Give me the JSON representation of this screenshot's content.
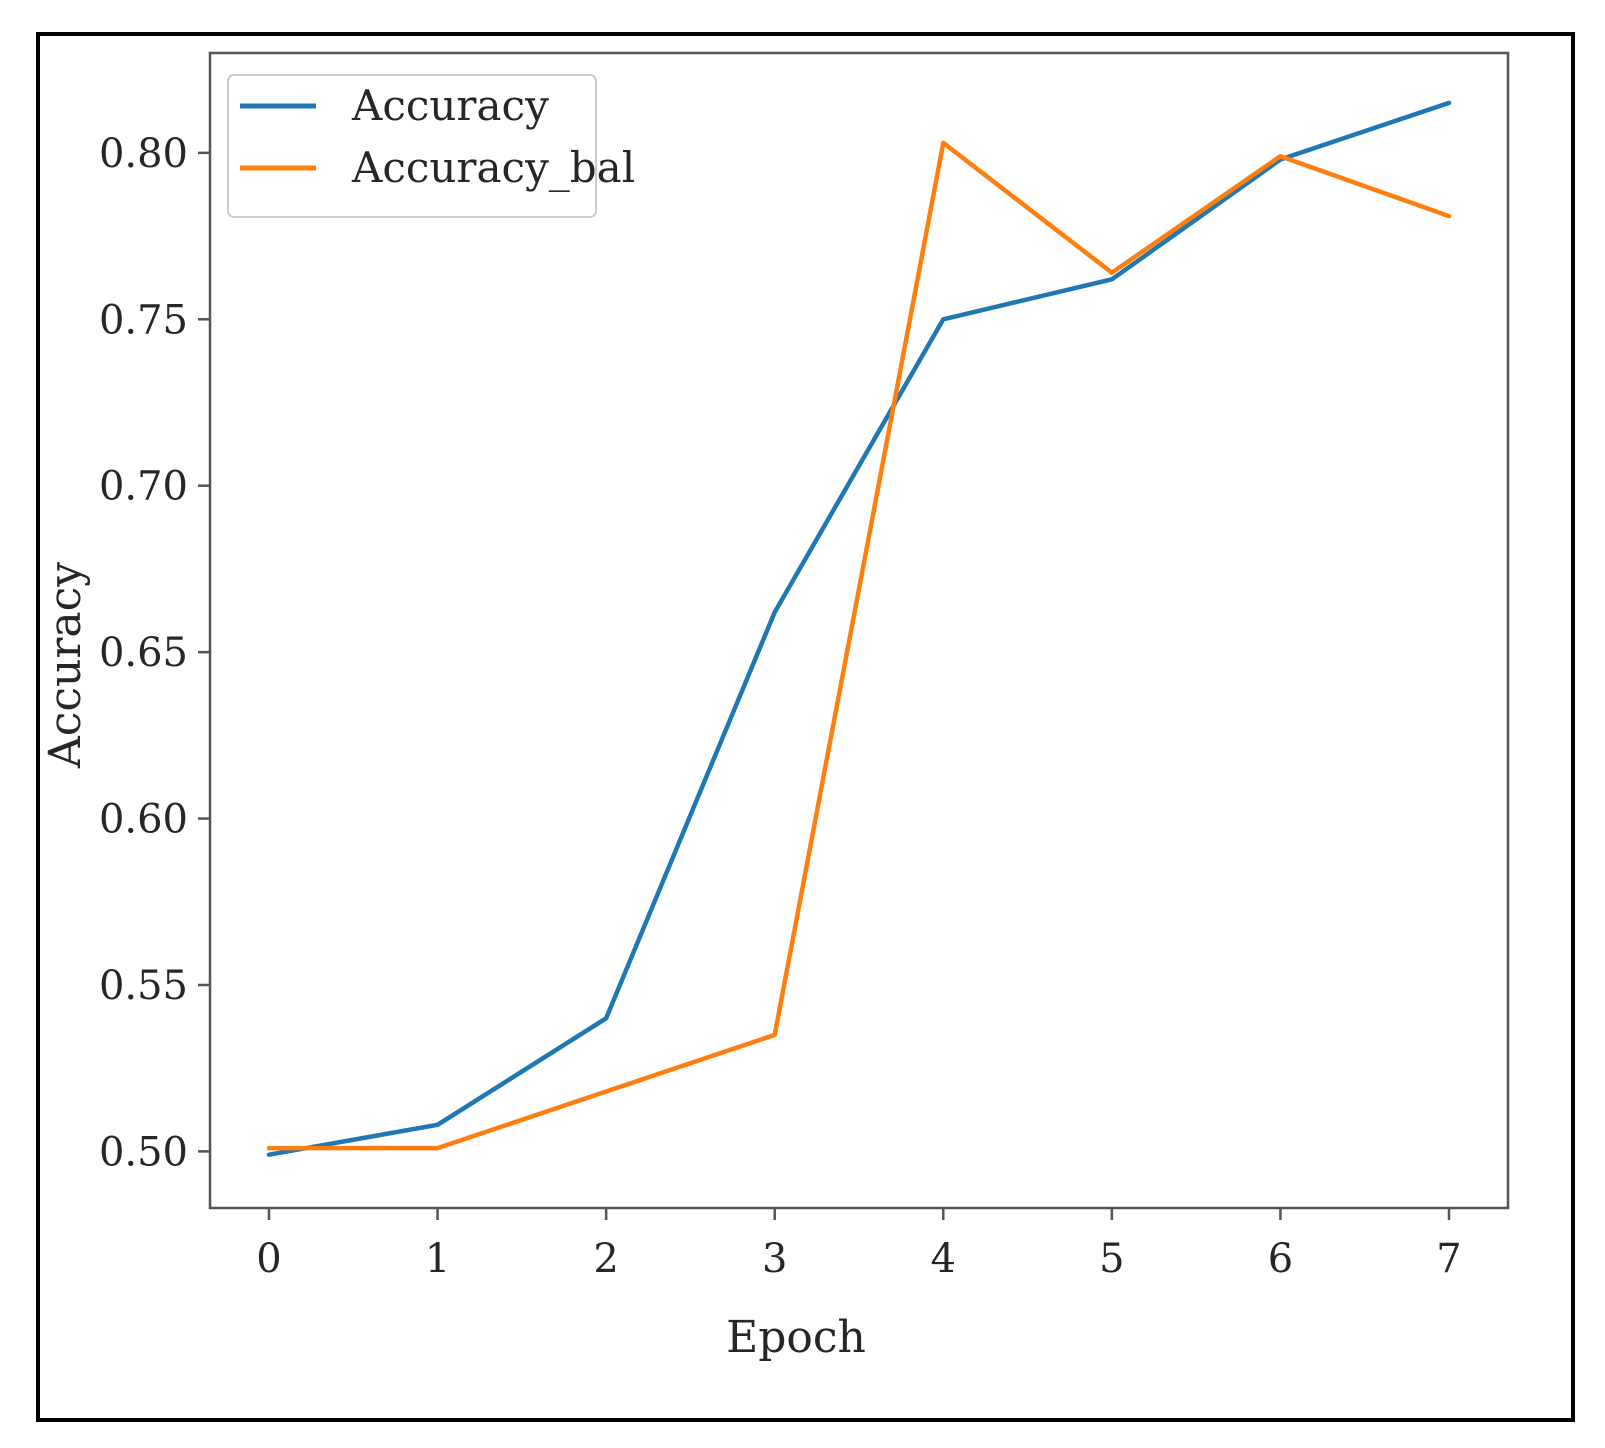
{
  "chart_data": {
    "type": "line",
    "title": "",
    "xlabel": "Epoch",
    "ylabel": "Accuracy",
    "x": [
      0,
      1,
      2,
      3,
      4,
      5,
      6,
      7
    ],
    "xticks": [
      "0",
      "1",
      "2",
      "3",
      "4",
      "5",
      "6",
      "7"
    ],
    "yticks": [
      "0.50",
      "0.55",
      "0.60",
      "0.65",
      "0.70",
      "0.75",
      "0.80"
    ],
    "xlim": [
      -0.35,
      7.35
    ],
    "ylim": [
      0.483,
      0.83
    ],
    "grid": false,
    "legend_position": "top-left",
    "series": [
      {
        "name": "Accuracy",
        "color": "#1f77b4",
        "values": [
          0.499,
          0.508,
          0.54,
          0.662,
          0.75,
          0.762,
          0.798,
          0.815
        ]
      },
      {
        "name": "Accuracy_bal",
        "color": "#ff7f0e",
        "values": [
          0.501,
          0.501,
          0.518,
          0.535,
          0.803,
          0.764,
          0.799,
          0.781
        ]
      }
    ]
  }
}
